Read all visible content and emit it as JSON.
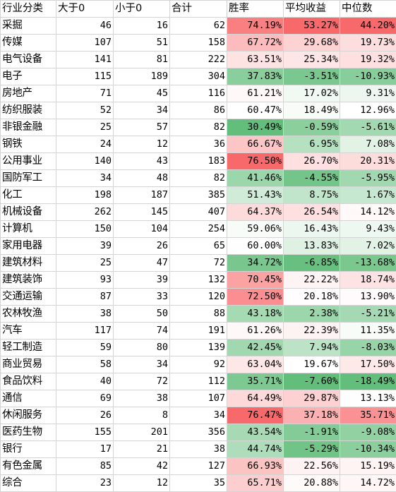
{
  "columns": [
    "行业分类",
    "大于0",
    "小于0",
    "合计",
    "胜率",
    "平均收益",
    "中位数"
  ],
  "scale": {
    "win": {
      "min": 30.49,
      "mid": 60.47,
      "max": 76.5
    },
    "avg": {
      "min": -7.6,
      "mid": 19.67,
      "max": 53.27
    },
    "median": {
      "min": -18.49,
      "mid": 12.96,
      "max": 44.2
    }
  },
  "colors": {
    "low": "#63be7b",
    "mid": "#ffffff",
    "high": "#f8696b",
    "border": "#d4d4d4"
  },
  "rows": [
    {
      "name": "采掘",
      "pos": "46",
      "neg": "16",
      "total": "62",
      "win": "74.19%",
      "avg": "53.27%",
      "median": "44.20%"
    },
    {
      "name": "传媒",
      "pos": "107",
      "neg": "51",
      "total": "158",
      "win": "67.72%",
      "avg": "29.68%",
      "median": "19.73%"
    },
    {
      "name": "电气设备",
      "pos": "141",
      "neg": "81",
      "total": "222",
      "win": "63.51%",
      "avg": "25.34%",
      "median": "19.32%"
    },
    {
      "name": "电子",
      "pos": "115",
      "neg": "189",
      "total": "304",
      "win": "37.83%",
      "avg": "-3.51%",
      "median": "-10.93%"
    },
    {
      "name": "房地产",
      "pos": "71",
      "neg": "45",
      "total": "116",
      "win": "61.21%",
      "avg": "17.02%",
      "median": "9.31%"
    },
    {
      "name": "纺织服装",
      "pos": "52",
      "neg": "34",
      "total": "86",
      "win": "60.47%",
      "avg": "18.49%",
      "median": "12.96%"
    },
    {
      "name": "非银金融",
      "pos": "25",
      "neg": "57",
      "total": "82",
      "win": "30.49%",
      "avg": "-0.59%",
      "median": "-5.61%"
    },
    {
      "name": "钢铁",
      "pos": "24",
      "neg": "12",
      "total": "36",
      "win": "66.67%",
      "avg": "6.95%",
      "median": "7.08%"
    },
    {
      "name": "公用事业",
      "pos": "140",
      "neg": "43",
      "total": "183",
      "win": "76.50%",
      "avg": "26.70%",
      "median": "20.31%"
    },
    {
      "name": "国防军工",
      "pos": "34",
      "neg": "48",
      "total": "82",
      "win": "41.46%",
      "avg": "-4.55%",
      "median": "-5.95%"
    },
    {
      "name": "化工",
      "pos": "198",
      "neg": "187",
      "total": "385",
      "win": "51.43%",
      "avg": "8.75%",
      "median": "1.67%"
    },
    {
      "name": "机械设备",
      "pos": "262",
      "neg": "145",
      "total": "407",
      "win": "64.37%",
      "avg": "26.54%",
      "median": "14.12%"
    },
    {
      "name": "计算机",
      "pos": "150",
      "neg": "104",
      "total": "254",
      "win": "59.06%",
      "avg": "16.43%",
      "median": "9.43%"
    },
    {
      "name": "家用电器",
      "pos": "39",
      "neg": "26",
      "total": "65",
      "win": "60.00%",
      "avg": "13.83%",
      "median": "7.02%"
    },
    {
      "name": "建筑材料",
      "pos": "25",
      "neg": "47",
      "total": "72",
      "win": "34.72%",
      "avg": "-6.85%",
      "median": "-13.68%"
    },
    {
      "name": "建筑装饰",
      "pos": "93",
      "neg": "39",
      "total": "132",
      "win": "70.45%",
      "avg": "22.22%",
      "median": "18.74%"
    },
    {
      "name": "交通运输",
      "pos": "87",
      "neg": "33",
      "total": "120",
      "win": "72.50%",
      "avg": "20.18%",
      "median": "13.90%"
    },
    {
      "name": "农林牧渔",
      "pos": "38",
      "neg": "50",
      "total": "88",
      "win": "43.18%",
      "avg": "2.38%",
      "median": "-5.21%"
    },
    {
      "name": "汽车",
      "pos": "117",
      "neg": "74",
      "total": "191",
      "win": "61.26%",
      "avg": "22.39%",
      "median": "11.35%"
    },
    {
      "name": "轻工制造",
      "pos": "59",
      "neg": "80",
      "total": "139",
      "win": "42.45%",
      "avg": "7.94%",
      "median": "-8.03%"
    },
    {
      "name": "商业贸易",
      "pos": "58",
      "neg": "34",
      "total": "92",
      "win": "63.04%",
      "avg": "19.67%",
      "median": "17.50%"
    },
    {
      "name": "食品饮料",
      "pos": "40",
      "neg": "72",
      "total": "112",
      "win": "35.71%",
      "avg": "-7.60%",
      "median": "-18.49%"
    },
    {
      "name": "通信",
      "pos": "69",
      "neg": "38",
      "total": "107",
      "win": "64.49%",
      "avg": "29.87%",
      "median": "13.13%"
    },
    {
      "name": "休闲服务",
      "pos": "26",
      "neg": "8",
      "total": "34",
      "win": "76.47%",
      "avg": "37.18%",
      "median": "35.71%"
    },
    {
      "name": "医药生物",
      "pos": "155",
      "neg": "201",
      "total": "356",
      "win": "43.54%",
      "avg": "-1.91%",
      "median": "-9.08%"
    },
    {
      "name": "银行",
      "pos": "17",
      "neg": "21",
      "total": "38",
      "win": "44.74%",
      "avg": "-5.29%",
      "median": "-10.34%"
    },
    {
      "name": "有色金属",
      "pos": "85",
      "neg": "42",
      "total": "127",
      "win": "66.93%",
      "avg": "22.56%",
      "median": "15.19%"
    },
    {
      "name": "综合",
      "pos": "23",
      "neg": "12",
      "total": "35",
      "win": "65.71%",
      "avg": "20.88%",
      "median": "14.72%"
    }
  ]
}
